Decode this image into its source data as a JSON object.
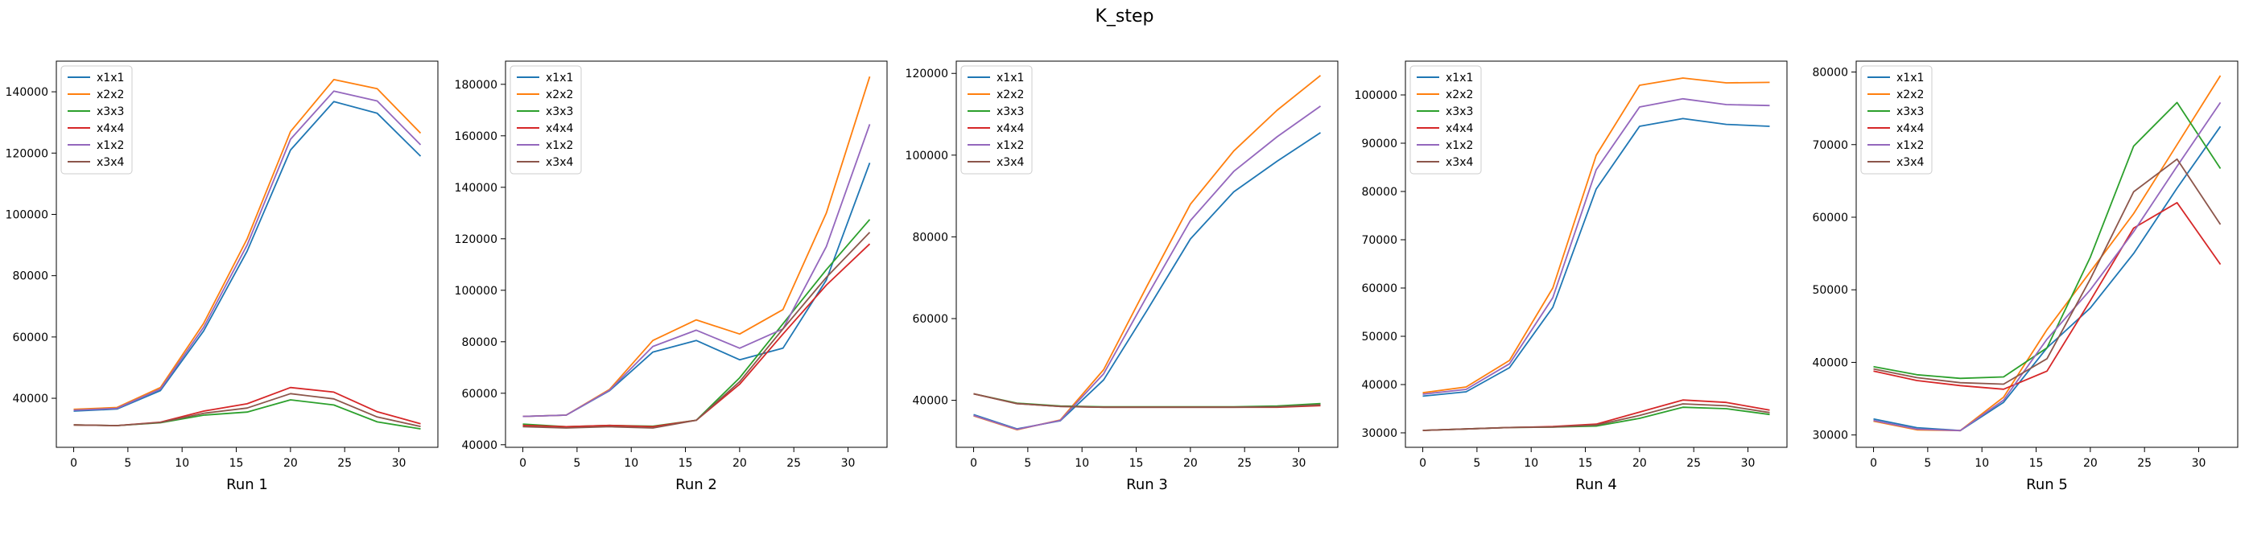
{
  "title": "K_step",
  "series_names": [
    "x1x1",
    "x2x2",
    "x3x3",
    "x4x4",
    "x1x2",
    "x3x4"
  ],
  "colors": [
    "#1f77b4",
    "#ff7f0e",
    "#2ca02c",
    "#d62728",
    "#9467bd",
    "#8c564b"
  ],
  "chart_data": [
    {
      "type": "line",
      "xlabel": "Run 1",
      "legend": "top-left",
      "x": [
        0,
        4,
        8,
        12,
        16,
        20,
        24,
        28,
        32
      ],
      "xlim": [
        -1.6,
        33.6
      ],
      "ylim": [
        24000,
        150000
      ],
      "xticks": [
        0,
        5,
        10,
        15,
        20,
        25,
        30
      ],
      "yticks": [
        40000,
        60000,
        80000,
        100000,
        120000,
        140000
      ],
      "series": [
        {
          "name": "x1x1",
          "values": [
            35800,
            36500,
            42500,
            62000,
            88000,
            121000,
            136800,
            133000,
            119000
          ]
        },
        {
          "name": "x2x2",
          "values": [
            36400,
            37000,
            43500,
            64500,
            92000,
            127000,
            144000,
            141000,
            126500
          ]
        },
        {
          "name": "x3x3",
          "values": [
            31300,
            31100,
            32000,
            34500,
            35500,
            39500,
            37800,
            32300,
            30000
          ]
        },
        {
          "name": "x4x4",
          "values": [
            31300,
            31100,
            32200,
            35800,
            38200,
            43500,
            42000,
            35600,
            31700
          ]
        },
        {
          "name": "x1x2",
          "values": [
            36100,
            36700,
            43000,
            63200,
            90000,
            124500,
            140200,
            137000,
            122700
          ]
        },
        {
          "name": "x3x4",
          "values": [
            31300,
            31100,
            32100,
            35100,
            36800,
            41500,
            39800,
            33900,
            30800
          ]
        }
      ]
    },
    {
      "type": "line",
      "xlabel": "Run 2",
      "legend": "top-left",
      "x": [
        0,
        4,
        8,
        12,
        16,
        20,
        24,
        28,
        32
      ],
      "xlim": [
        -1.6,
        33.6
      ],
      "ylim": [
        39000,
        189000
      ],
      "xticks": [
        0,
        5,
        10,
        15,
        20,
        25,
        30
      ],
      "yticks": [
        40000,
        60000,
        80000,
        100000,
        120000,
        140000,
        160000,
        180000
      ],
      "series": [
        {
          "name": "x1x1",
          "values": [
            51000,
            51500,
            61000,
            76000,
            80500,
            73000,
            77500,
            104000,
            149500
          ]
        },
        {
          "name": "x2x2",
          "values": [
            51000,
            51500,
            61500,
            80500,
            88500,
            83000,
            92500,
            130000,
            183000
          ]
        },
        {
          "name": "x3x3",
          "values": [
            48000,
            47000,
            47500,
            47200,
            49500,
            66000,
            87000,
            108000,
            127500
          ]
        },
        {
          "name": "x4x4",
          "values": [
            47500,
            47000,
            47500,
            47000,
            49500,
            63500,
            83000,
            102000,
            118000
          ]
        },
        {
          "name": "x1x2",
          "values": [
            51000,
            51500,
            61200,
            78200,
            84500,
            77500,
            85000,
            117000,
            164500
          ]
        },
        {
          "name": "x3x4",
          "values": [
            47000,
            46500,
            47000,
            46500,
            49500,
            64500,
            85000,
            105000,
            122500
          ]
        }
      ]
    },
    {
      "type": "line",
      "xlabel": "Run 3",
      "legend": "top-left",
      "x": [
        0,
        4,
        8,
        12,
        16,
        20,
        24,
        28,
        32
      ],
      "xlim": [
        -1.6,
        33.6
      ],
      "ylim": [
        28500,
        123000
      ],
      "xticks": [
        0,
        5,
        10,
        15,
        20,
        25,
        30
      ],
      "yticks": [
        40000,
        60000,
        80000,
        100000,
        120000
      ],
      "series": [
        {
          "name": "x1x1",
          "values": [
            36500,
            33000,
            35000,
            45000,
            62000,
            79500,
            91000,
            98500,
            105500
          ]
        },
        {
          "name": "x2x2",
          "values": [
            36200,
            32800,
            35200,
            47500,
            68000,
            88000,
            101000,
            111000,
            119500
          ]
        },
        {
          "name": "x3x3",
          "values": [
            41600,
            39300,
            38600,
            38400,
            38400,
            38400,
            38400,
            38600,
            39200
          ]
        },
        {
          "name": "x4x4",
          "values": [
            41600,
            39200,
            38500,
            38300,
            38300,
            38300,
            38300,
            38300,
            38700
          ]
        },
        {
          "name": "x1x2",
          "values": [
            36300,
            32900,
            35100,
            46500,
            65500,
            84000,
            96000,
            104500,
            112000
          ]
        },
        {
          "name": "x3x4",
          "values": [
            41600,
            39200,
            38500,
            38300,
            38300,
            38300,
            38300,
            38400,
            38900
          ]
        }
      ]
    },
    {
      "type": "line",
      "xlabel": "Run 4",
      "legend": "top-left",
      "x": [
        0,
        4,
        8,
        12,
        16,
        20,
        24,
        28,
        32
      ],
      "xlim": [
        -1.6,
        33.6
      ],
      "ylim": [
        27000,
        107000
      ],
      "xticks": [
        0,
        5,
        10,
        15,
        20,
        25,
        30
      ],
      "yticks": [
        30000,
        40000,
        50000,
        60000,
        70000,
        80000,
        90000,
        100000
      ],
      "series": [
        {
          "name": "x1x1",
          "values": [
            37600,
            38500,
            43500,
            56000,
            80500,
            93500,
            95100,
            93900,
            93500
          ]
        },
        {
          "name": "x2x2",
          "values": [
            38300,
            39500,
            45000,
            60000,
            87500,
            102000,
            103500,
            102500,
            102600
          ]
        },
        {
          "name": "x3x3",
          "values": [
            30500,
            30800,
            31100,
            31200,
            31400,
            33000,
            35300,
            35000,
            33800
          ]
        },
        {
          "name": "x4x4",
          "values": [
            30500,
            30800,
            31100,
            31300,
            31800,
            34300,
            36800,
            36300,
            34700
          ]
        },
        {
          "name": "x1x2",
          "values": [
            38000,
            39000,
            44300,
            58000,
            84500,
            97500,
            99200,
            98000,
            97800
          ]
        },
        {
          "name": "x3x4",
          "values": [
            30500,
            30800,
            31100,
            31200,
            31600,
            33600,
            36000,
            35600,
            34200
          ]
        }
      ]
    },
    {
      "type": "line",
      "xlabel": "Run 5",
      "legend": "top-left",
      "x": [
        0,
        4,
        8,
        12,
        16,
        20,
        24,
        28,
        32
      ],
      "xlim": [
        -1.6,
        33.6
      ],
      "ylim": [
        28300,
        81500
      ],
      "xticks": [
        0,
        5,
        10,
        15,
        20,
        25,
        30
      ],
      "yticks": [
        30000,
        40000,
        50000,
        60000,
        70000,
        80000
      ],
      "series": [
        {
          "name": "x1x1",
          "values": [
            32200,
            31000,
            30600,
            34500,
            42000,
            47500,
            55000,
            64000,
            72500
          ]
        },
        {
          "name": "x2x2",
          "values": [
            31900,
            30700,
            30600,
            35200,
            44500,
            52500,
            60500,
            70000,
            79500
          ]
        },
        {
          "name": "x3x3",
          "values": [
            39400,
            38300,
            37800,
            38000,
            42000,
            54500,
            69800,
            75800,
            66700
          ]
        },
        {
          "name": "x4x4",
          "values": [
            38800,
            37500,
            36800,
            36300,
            38800,
            48500,
            58500,
            62000,
            53500
          ]
        },
        {
          "name": "x1x2",
          "values": [
            32000,
            30800,
            30600,
            34800,
            43200,
            50000,
            58000,
            67000,
            75800
          ]
        },
        {
          "name": "x3x4",
          "values": [
            39100,
            37900,
            37200,
            37000,
            40500,
            51500,
            63500,
            68000,
            59000
          ]
        }
      ]
    }
  ]
}
